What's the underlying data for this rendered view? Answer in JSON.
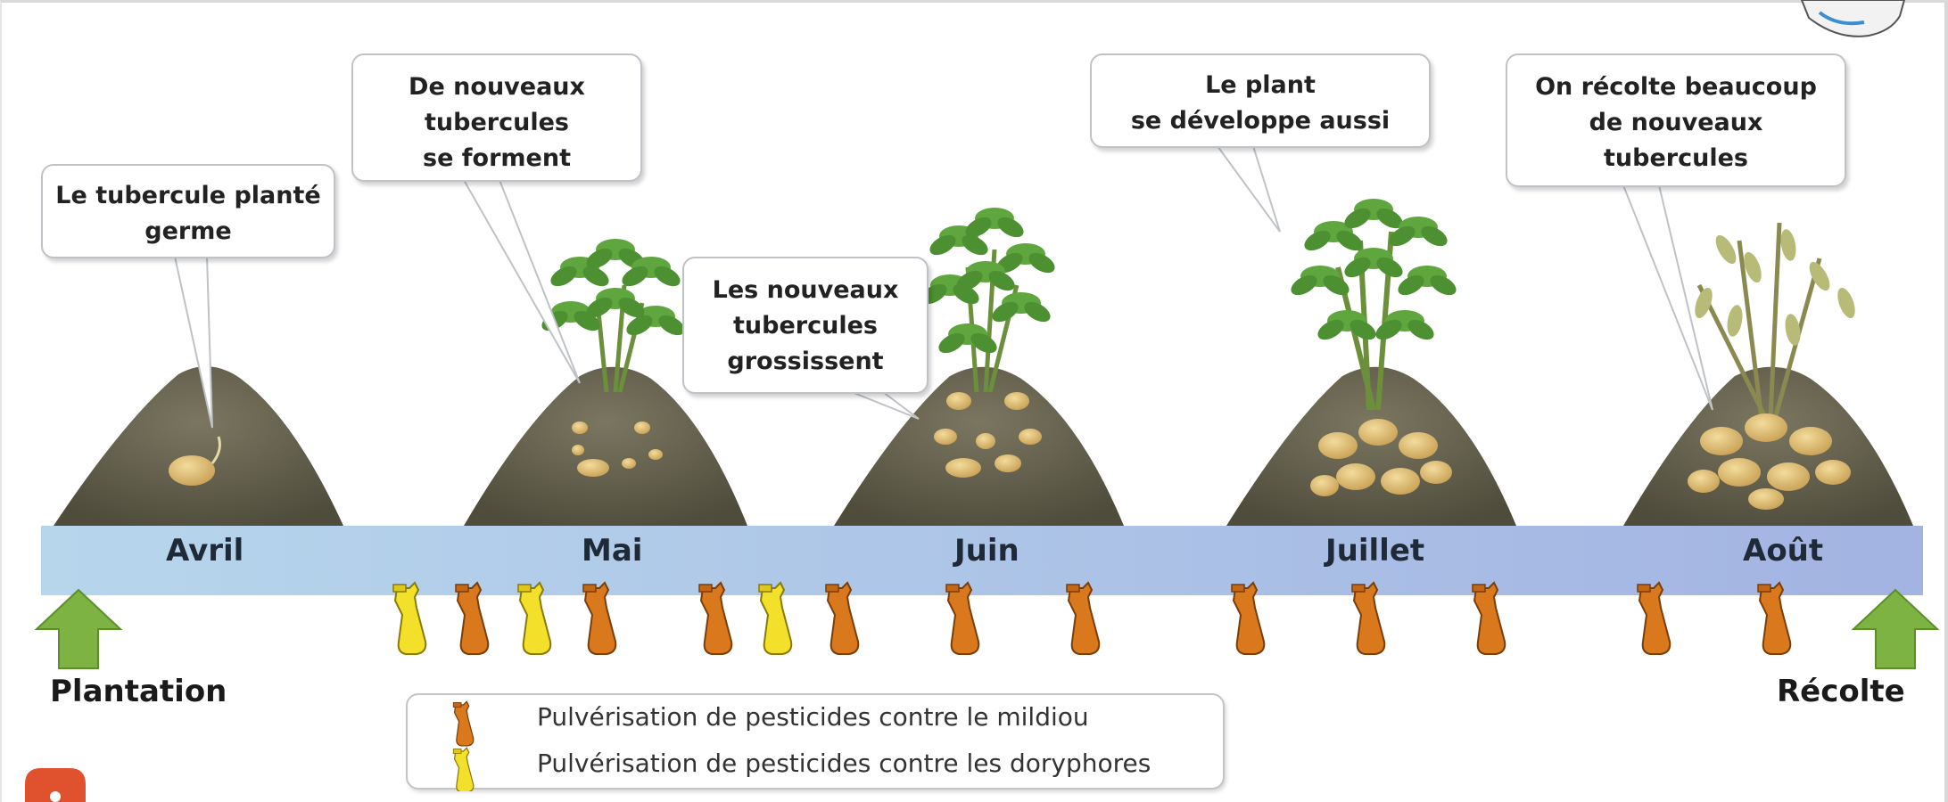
{
  "bubbles": {
    "germe": [
      "Le tubercule planté",
      "germe"
    ],
    "forment": [
      "De nouveaux",
      "tubercules",
      "se forment"
    ],
    "grossissent": [
      "Les nouveaux",
      "tubercules",
      "grossissent"
    ],
    "developpe": [
      "Le plant",
      "se développe aussi"
    ],
    "recolte": [
      "On récolte beaucoup",
      "de nouveaux",
      "tubercules"
    ]
  },
  "timeline": {
    "months": [
      "Avril",
      "Mai",
      "Juin",
      "Juillet",
      "Août"
    ],
    "start_label": "Plantation",
    "end_label": "Récolte"
  },
  "legend": {
    "mildiou": "Pulvérisation de pesticides contre le mildiou",
    "doryphores": "Pulvérisation de pesticides contre les doryphores"
  },
  "colors": {
    "mildiou_sprayer": "#d9781c",
    "doryphores_sprayer": "#f2e02a",
    "arrow": "#7cb342",
    "timeline_band": "#a9c3e2",
    "soil": "#5d5a48"
  }
}
